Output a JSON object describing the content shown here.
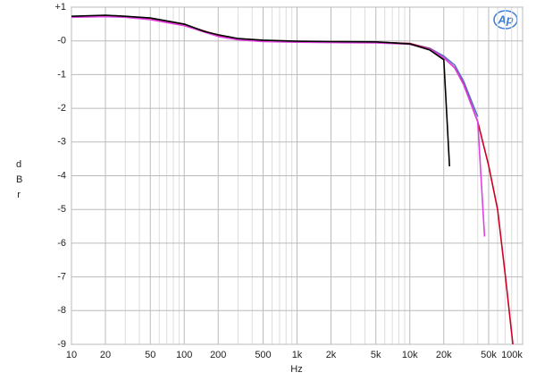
{
  "chart_data": {
    "type": "line",
    "logo": "Ap",
    "xlabel": "Hz",
    "ylabel": "dBr",
    "xscale": "log",
    "grid": true,
    "xlim": [
      10,
      100000
    ],
    "ylim": [
      -9,
      1
    ],
    "xticks": [
      {
        "value": 10,
        "label": "10"
      },
      {
        "value": 20,
        "label": "20"
      },
      {
        "value": 50,
        "label": "50"
      },
      {
        "value": 100,
        "label": "100"
      },
      {
        "value": 200,
        "label": "200"
      },
      {
        "value": 500,
        "label": "500"
      },
      {
        "value": 1000,
        "label": "1k"
      },
      {
        "value": 2000,
        "label": "2k"
      },
      {
        "value": 5000,
        "label": "5k"
      },
      {
        "value": 10000,
        "label": "10k"
      },
      {
        "value": 20000,
        "label": "20k"
      },
      {
        "value": 50000,
        "label": "50k"
      },
      {
        "value": 100000,
        "label": "100k"
      }
    ],
    "xminorticks": [
      30,
      40,
      60,
      70,
      80,
      90,
      300,
      400,
      600,
      700,
      800,
      900,
      3000,
      4000,
      6000,
      7000,
      8000,
      9000,
      30000,
      40000,
      60000,
      70000,
      80000,
      90000
    ],
    "yticks": [
      {
        "value": 1,
        "label": "+1"
      },
      {
        "value": 0,
        "label": "-0"
      },
      -1,
      -2,
      -3,
      -4,
      -5,
      -6,
      -7,
      -8,
      -9
    ],
    "series": [
      {
        "name": "blue",
        "color": "#5a6fd0",
        "x": [
          10,
          20,
          50,
          100,
          200,
          300,
          500,
          1000,
          2000,
          5000,
          10000,
          15000,
          20000,
          25000,
          30000,
          40000
        ],
        "values": [
          0.72,
          0.75,
          0.66,
          0.48,
          0.16,
          0.05,
          0.0,
          -0.02,
          -0.03,
          -0.04,
          -0.08,
          -0.22,
          -0.45,
          -0.72,
          -1.2,
          -2.25
        ]
      },
      {
        "name": "red",
        "color": "#cc0022",
        "x": [
          10,
          20,
          50,
          100,
          200,
          300,
          500,
          1000,
          2000,
          5000,
          10000,
          15000,
          20000,
          25000,
          30000,
          40000,
          50000,
          60000,
          70000,
          82000
        ],
        "values": [
          0.72,
          0.75,
          0.66,
          0.48,
          0.16,
          0.05,
          0.0,
          -0.02,
          -0.03,
          -0.04,
          -0.08,
          -0.24,
          -0.5,
          -0.8,
          -1.28,
          -2.4,
          -3.7,
          -5.0,
          -6.9,
          -9.0
        ]
      },
      {
        "name": "magenta",
        "color": "#e040e0",
        "x": [
          10,
          20,
          30,
          50,
          100,
          200,
          300,
          500,
          1000,
          2000,
          5000,
          10000,
          15000,
          20000,
          25000,
          30000,
          40000,
          46000
        ],
        "values": [
          0.7,
          0.72,
          0.7,
          0.63,
          0.45,
          0.13,
          0.03,
          -0.02,
          -0.04,
          -0.05,
          -0.06,
          -0.1,
          -0.25,
          -0.5,
          -0.8,
          -1.3,
          -2.4,
          -5.8
        ]
      },
      {
        "name": "black",
        "color": "#000000",
        "x": [
          10,
          20,
          30,
          50,
          100,
          150,
          200,
          300,
          500,
          1000,
          2000,
          5000,
          10000,
          15000,
          20000,
          22500
        ],
        "values": [
          0.73,
          0.76,
          0.73,
          0.68,
          0.5,
          0.28,
          0.18,
          0.07,
          0.02,
          -0.01,
          -0.02,
          -0.03,
          -0.09,
          -0.27,
          -0.56,
          -3.72
        ]
      }
    ]
  }
}
